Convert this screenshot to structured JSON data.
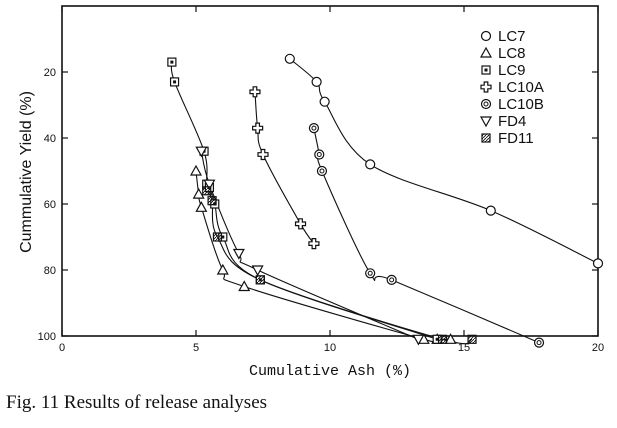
{
  "caption": "Fig. 11  Results of release analyses",
  "chart_data": {
    "type": "scatter",
    "xlabel": "Cumulative Ash (%)",
    "ylabel": "Cummulative Yield (%)",
    "xlim": [
      0,
      20
    ],
    "ylim": [
      0,
      100
    ],
    "y_inverted": true,
    "x_ticks": [
      0,
      5,
      10,
      15,
      20
    ],
    "y_ticks": [
      20,
      40,
      60,
      80,
      100
    ],
    "y_tick_labels": [
      "20",
      "40",
      "60",
      "80",
      "100"
    ],
    "x_tick_labels": [
      "0",
      "5",
      "10",
      "15",
      "20"
    ],
    "legend_position": "top-right",
    "series": [
      {
        "name": "LC7",
        "marker": "circle",
        "x": [
          8.5,
          9.5,
          9.8,
          11.5,
          16.0,
          20.0
        ],
        "y": [
          16,
          23,
          29,
          48,
          62,
          78
        ]
      },
      {
        "name": "LC8",
        "marker": "triangle-up",
        "x": [
          5.0,
          5.1,
          5.2,
          6.0,
          6.8,
          13.5,
          14.0,
          14.5
        ],
        "y": [
          50,
          57,
          61,
          80,
          85,
          101,
          101,
          101
        ]
      },
      {
        "name": "LC9",
        "marker": "square-dot",
        "x": [
          4.1,
          4.2,
          5.3,
          5.4,
          5.5,
          5.7,
          6.0,
          7.4,
          14.0
        ],
        "y": [
          17,
          23,
          44,
          54,
          55,
          60,
          70,
          83,
          101
        ]
      },
      {
        "name": "LC10A",
        "marker": "cross",
        "x": [
          7.2,
          7.3,
          7.5,
          8.9,
          9.4
        ],
        "y": [
          26,
          37,
          45,
          66,
          72
        ]
      },
      {
        "name": "LC10B",
        "marker": "double-circle",
        "x": [
          9.4,
          9.6,
          9.7,
          11.5,
          12.3,
          17.8
        ],
        "y": [
          37,
          45,
          50,
          81,
          83,
          102
        ]
      },
      {
        "name": "FD4",
        "marker": "triangle-down",
        "x": [
          5.2,
          5.5,
          6.6,
          7.3,
          13.3
        ],
        "y": [
          44,
          54,
          75,
          80,
          101
        ]
      },
      {
        "name": "FD11",
        "marker": "square-hatch",
        "x": [
          5.4,
          5.6,
          5.8,
          7.4,
          14.2,
          15.3
        ],
        "y": [
          56,
          59,
          70,
          83,
          101,
          101
        ]
      }
    ]
  }
}
